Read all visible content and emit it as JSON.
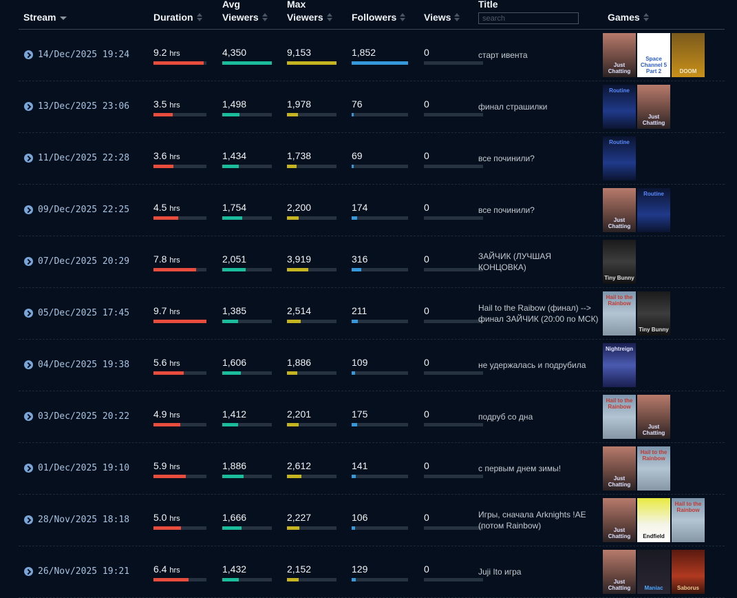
{
  "header": {
    "stream": "Stream",
    "duration": "Duration",
    "avg1": "Avg",
    "avg2": "Viewers",
    "max1": "Max",
    "max2": "Viewers",
    "followers": "Followers",
    "views": "Views",
    "title": "Title",
    "search_placeholder": "search",
    "games": "Games"
  },
  "colors": {
    "duration": "#e74c3c",
    "avg": "#1abc9c",
    "max": "#c4b520",
    "followers": "#3498db",
    "track": "#273241"
  },
  "maxima": {
    "duration": 9.7,
    "avg": 4350,
    "max": 9153,
    "followers": 1852
  },
  "unit": "hrs",
  "rows": [
    {
      "stream": "14/Dec/2025 19:24",
      "duration": "9.2",
      "avg": "4,350",
      "max": "9,153",
      "followers": "1,852",
      "views": "0",
      "title": "старт ивента",
      "games": [
        "Just Chatting",
        "Space Channel 5 Part 2",
        "DOOM"
      ]
    },
    {
      "stream": "13/Dec/2025 23:06",
      "duration": "3.5",
      "avg": "1,498",
      "max": "1,978",
      "followers": "76",
      "views": "0",
      "title": "финал страшилки",
      "games": [
        "Routine",
        "Just Chatting"
      ]
    },
    {
      "stream": "11/Dec/2025 22:28",
      "duration": "3.6",
      "avg": "1,434",
      "max": "1,738",
      "followers": "69",
      "views": "0",
      "title": "все починили?",
      "games": [
        "Routine"
      ]
    },
    {
      "stream": "09/Dec/2025 22:25",
      "duration": "4.5",
      "avg": "1,754",
      "max": "2,200",
      "followers": "174",
      "views": "0",
      "title": "все починили?",
      "games": [
        "Just Chatting",
        "Routine"
      ]
    },
    {
      "stream": "07/Dec/2025 20:29",
      "duration": "7.8",
      "avg": "2,051",
      "max": "3,919",
      "followers": "316",
      "views": "0",
      "title": "ЗАЙЧИК (ЛУЧШАЯ КОНЦОВКА)",
      "games": [
        "Tiny Bunny"
      ]
    },
    {
      "stream": "05/Dec/2025 17:45",
      "duration": "9.7",
      "avg": "1,385",
      "max": "2,514",
      "followers": "211",
      "views": "0",
      "title": "Hail to the Raibow (финал) --> финал ЗАЙЧИК (20:00 по МСК)",
      "games": [
        "Hail to the Rainbow",
        "Tiny Bunny"
      ]
    },
    {
      "stream": "04/Dec/2025 19:38",
      "duration": "5.6",
      "avg": "1,606",
      "max": "1,886",
      "followers": "109",
      "views": "0",
      "title": "не удержалась и подрубила",
      "games": [
        "Nightreign"
      ]
    },
    {
      "stream": "03/Dec/2025 20:22",
      "duration": "4.9",
      "avg": "1,412",
      "max": "2,201",
      "followers": "175",
      "views": "0",
      "title": "подруб со дна",
      "games": [
        "Hail to the Rainbow",
        "Just Chatting"
      ]
    },
    {
      "stream": "01/Dec/2025 19:10",
      "duration": "5.9",
      "avg": "1,886",
      "max": "2,612",
      "followers": "141",
      "views": "0",
      "title": "с первым днем зимы!",
      "games": [
        "Just Chatting",
        "Hail to the Rainbow"
      ]
    },
    {
      "stream": "28/Nov/2025 18:18",
      "duration": "5.0",
      "avg": "1,666",
      "max": "2,227",
      "followers": "106",
      "views": "0",
      "title": "Игры, сначала Arknights !AE (потом Rainbow)",
      "games": [
        "Just Chatting",
        "Endfield",
        "Hail to the Rainbow"
      ]
    },
    {
      "stream": "26/Nov/2025 19:21",
      "duration": "6.4",
      "avg": "1,432",
      "max": "2,152",
      "followers": "129",
      "views": "0",
      "title": "Juji Ito игра",
      "games": [
        "Just Chatting",
        "Maniac",
        "Saborus"
      ]
    }
  ]
}
